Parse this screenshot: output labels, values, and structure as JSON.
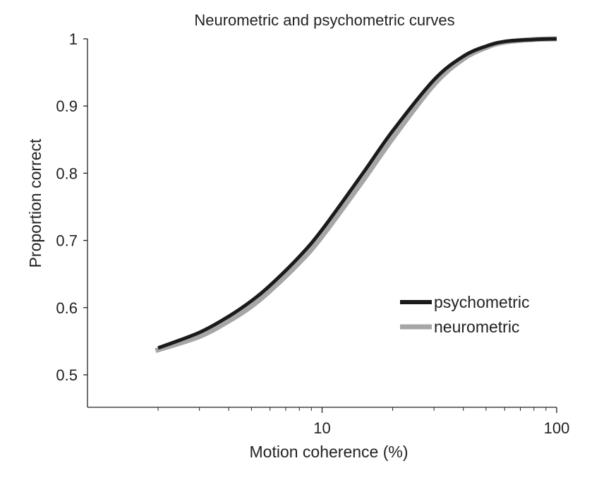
{
  "chart_data": {
    "type": "line",
    "title": "Neurometric and psychometric curves",
    "xlabel": "Motion coherence (%)",
    "ylabel": "Proportion correct",
    "xscale": "log",
    "xlim": [
      1,
      100
    ],
    "ylim": [
      0.45,
      1
    ],
    "xticks": [
      {
        "value": 10,
        "label": "10"
      },
      {
        "value": 100,
        "label": "100"
      }
    ],
    "xminor_ticks": [
      2,
      3,
      4,
      5,
      6,
      7,
      8,
      9,
      20,
      30,
      40,
      50,
      60,
      70,
      80,
      90
    ],
    "yticks": [
      {
        "value": 0.5,
        "label": "0.5"
      },
      {
        "value": 0.6,
        "label": "0.6"
      },
      {
        "value": 0.7,
        "label": "0.7"
      },
      {
        "value": 0.8,
        "label": "0.8"
      },
      {
        "value": 0.9,
        "label": "0.9"
      },
      {
        "value": 1,
        "label": "1"
      }
    ],
    "grid": false,
    "legend_position": "bottom-right",
    "series": [
      {
        "name": "psychometric",
        "color": "#1a1a1a",
        "x": [
          2,
          3,
          4,
          5,
          6,
          8,
          10,
          15,
          20,
          30,
          40,
          50,
          60,
          80,
          100
        ],
        "y": [
          0.54,
          0.563,
          0.587,
          0.61,
          0.633,
          0.676,
          0.716,
          0.801,
          0.863,
          0.939,
          0.974,
          0.989,
          0.996,
          0.999,
          1.0
        ]
      },
      {
        "name": "neurometric",
        "color": "#a6a6a8",
        "x": [
          1.95,
          3,
          4,
          5,
          6,
          8,
          10,
          15,
          20,
          30,
          40,
          50,
          60,
          80,
          100
        ],
        "y": [
          0.536,
          0.557,
          0.58,
          0.602,
          0.625,
          0.667,
          0.706,
          0.79,
          0.852,
          0.932,
          0.97,
          0.987,
          0.995,
          0.999,
          1.0
        ]
      }
    ]
  }
}
